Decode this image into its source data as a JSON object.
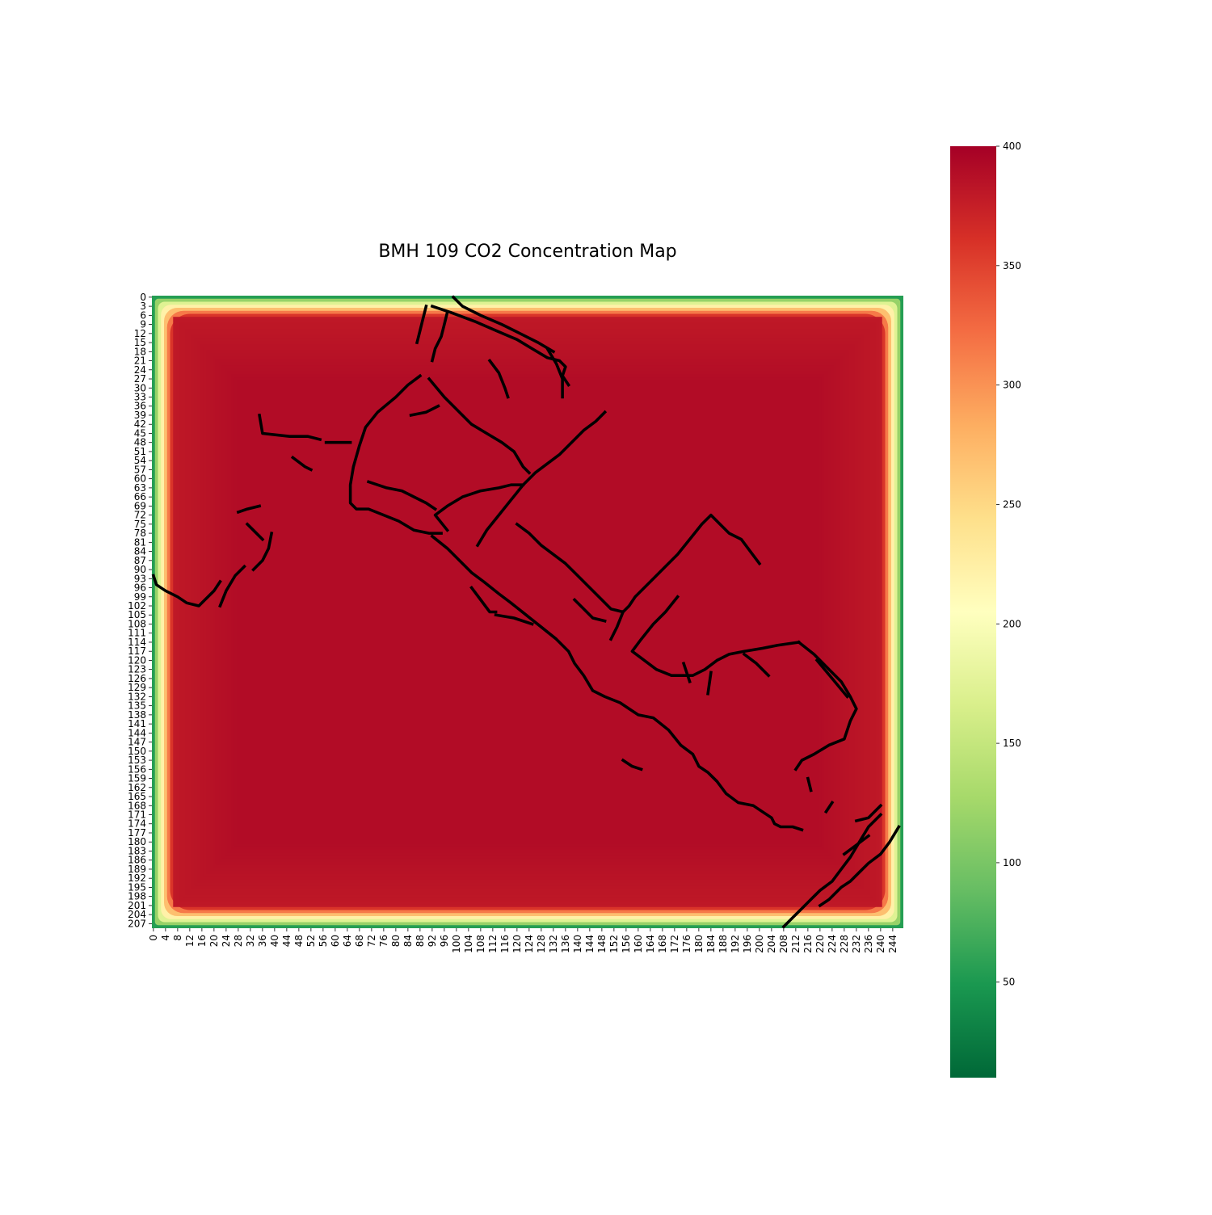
{
  "chart_data": {
    "type": "heatmap",
    "title": "BMH 109 CO2 Concentration Map",
    "xlabel": "",
    "ylabel": "",
    "grid_shape": {
      "rows": 209,
      "cols": 248
    },
    "x_tick_labels": [
      "0",
      "4",
      "8",
      "12",
      "16",
      "20",
      "24",
      "28",
      "32",
      "36",
      "40",
      "44",
      "48",
      "52",
      "56",
      "60",
      "64",
      "68",
      "72",
      "76",
      "80",
      "84",
      "88",
      "92",
      "96",
      "100",
      "104",
      "108",
      "112",
      "116",
      "120",
      "124",
      "128",
      "132",
      "136",
      "140",
      "144",
      "148",
      "152",
      "156",
      "160",
      "164",
      "168",
      "172",
      "176",
      "180",
      "184",
      "188",
      "192",
      "196",
      "200",
      "204",
      "208",
      "212",
      "216",
      "220",
      "224",
      "228",
      "232",
      "236",
      "240",
      "244"
    ],
    "y_tick_labels": [
      "0",
      "3",
      "6",
      "9",
      "12",
      "15",
      "18",
      "21",
      "24",
      "27",
      "30",
      "33",
      "36",
      "39",
      "42",
      "45",
      "48",
      "51",
      "54",
      "57",
      "60",
      "63",
      "66",
      "69",
      "72",
      "75",
      "78",
      "81",
      "84",
      "87",
      "90",
      "93",
      "96",
      "99",
      "102",
      "105",
      "108",
      "111",
      "114",
      "117",
      "120",
      "123",
      "126",
      "129",
      "132",
      "135",
      "138",
      "141",
      "144",
      "147",
      "150",
      "153",
      "156",
      "159",
      "162",
      "165",
      "168",
      "171",
      "174",
      "177",
      "180",
      "183",
      "186",
      "189",
      "192",
      "195",
      "198",
      "201",
      "204",
      "207"
    ],
    "value_model": {
      "interior_value": 390,
      "edge_value": 10,
      "edge_falloff_cells": 7,
      "outer_halo_value": 380,
      "outer_halo_cells": 28
    },
    "colorbar": {
      "colormap": "RdYlGn_r",
      "vmin": 10,
      "vmax": 400,
      "ticks": [
        50,
        100,
        150,
        200,
        250,
        300,
        350,
        400
      ],
      "tick_labels": [
        "50",
        "100",
        "150",
        "200",
        "250",
        "300",
        "350",
        "400"
      ]
    },
    "obstacle_color": "#000000",
    "obstacle_paths": [
      [
        [
          99,
          0
        ],
        [
          102,
          3
        ],
        [
          108,
          6
        ],
        [
          115,
          9
        ],
        [
          121,
          12
        ],
        [
          127,
          15
        ],
        [
          132,
          18
        ]
      ],
      [
        [
          92,
          3
        ],
        [
          98,
          5
        ],
        [
          106,
          8
        ],
        [
          113,
          11
        ],
        [
          120,
          14
        ],
        [
          125,
          17
        ],
        [
          130,
          20
        ],
        [
          134,
          21
        ],
        [
          136,
          23
        ],
        [
          135,
          26
        ],
        [
          137,
          29
        ]
      ],
      [
        [
          90,
          3
        ],
        [
          89,
          7
        ],
        [
          88,
          11
        ],
        [
          87,
          15
        ]
      ],
      [
        [
          97,
          5
        ],
        [
          96,
          9
        ],
        [
          95,
          13
        ],
        [
          93,
          17
        ],
        [
          92,
          21
        ]
      ],
      [
        [
          111,
          21
        ],
        [
          114,
          25
        ],
        [
          116,
          30
        ],
        [
          117,
          33
        ]
      ],
      [
        [
          130,
          17
        ],
        [
          133,
          22
        ],
        [
          135,
          27
        ],
        [
          135,
          33
        ]
      ],
      [
        [
          88,
          26
        ],
        [
          84,
          29
        ],
        [
          80,
          33
        ],
        [
          74,
          38
        ],
        [
          70,
          43
        ],
        [
          68,
          49
        ],
        [
          66,
          56
        ],
        [
          65,
          62
        ],
        [
          65,
          68
        ],
        [
          67,
          70
        ],
        [
          71,
          70
        ],
        [
          76,
          72
        ],
        [
          81,
          74
        ],
        [
          86,
          77
        ],
        [
          91,
          78
        ],
        [
          95,
          78
        ]
      ],
      [
        [
          91,
          27
        ],
        [
          96,
          33
        ],
        [
          101,
          38
        ],
        [
          105,
          42
        ],
        [
          110,
          45
        ],
        [
          115,
          48
        ],
        [
          119,
          51
        ],
        [
          122,
          56
        ],
        [
          124,
          58
        ]
      ],
      [
        [
          94,
          36
        ],
        [
          90,
          38
        ],
        [
          85,
          39
        ]
      ],
      [
        [
          71,
          61
        ],
        [
          77,
          63
        ],
        [
          82,
          64
        ],
        [
          86,
          66
        ],
        [
          90,
          68
        ],
        [
          93,
          70
        ]
      ],
      [
        [
          35,
          39
        ],
        [
          36,
          45
        ],
        [
          45,
          46
        ],
        [
          51,
          46
        ],
        [
          55,
          47
        ]
      ],
      [
        [
          57,
          48
        ],
        [
          65,
          48
        ]
      ],
      [
        [
          46,
          53
        ],
        [
          50,
          56
        ],
        [
          52,
          57
        ]
      ],
      [
        [
          92,
          79
        ],
        [
          97,
          83
        ],
        [
          101,
          87
        ],
        [
          105,
          91
        ],
        [
          109,
          94
        ],
        [
          114,
          98
        ],
        [
          118,
          101
        ],
        [
          123,
          105
        ],
        [
          128,
          109
        ],
        [
          133,
          113
        ],
        [
          137,
          117
        ],
        [
          139,
          121
        ],
        [
          142,
          125
        ],
        [
          145,
          130
        ],
        [
          149,
          132
        ],
        [
          154,
          134
        ],
        [
          157,
          136
        ],
        [
          160,
          138
        ],
        [
          165,
          139
        ],
        [
          170,
          143
        ],
        [
          174,
          148
        ],
        [
          178,
          151
        ],
        [
          180,
          155
        ],
        [
          183,
          157
        ],
        [
          186,
          160
        ],
        [
          189,
          164
        ],
        [
          193,
          167
        ],
        [
          198,
          168
        ],
        [
          201,
          170
        ],
        [
          204,
          172
        ],
        [
          205,
          174
        ],
        [
          207,
          175
        ],
        [
          211,
          175
        ],
        [
          214,
          176
        ]
      ],
      [
        [
          107,
          82
        ],
        [
          110,
          77
        ],
        [
          114,
          72
        ],
        [
          118,
          67
        ],
        [
          122,
          62
        ],
        [
          126,
          58
        ],
        [
          130,
          55
        ],
        [
          134,
          52
        ],
        [
          138,
          48
        ],
        [
          142,
          44
        ],
        [
          146,
          41
        ],
        [
          149,
          38
        ]
      ],
      [
        [
          97,
          77
        ],
        [
          93,
          72
        ],
        [
          97,
          69
        ],
        [
          102,
          66
        ],
        [
          108,
          64
        ],
        [
          114,
          63
        ],
        [
          118,
          62
        ],
        [
          122,
          62
        ]
      ],
      [
        [
          120,
          75
        ],
        [
          124,
          78
        ],
        [
          128,
          82
        ],
        [
          132,
          85
        ],
        [
          136,
          88
        ],
        [
          140,
          92
        ],
        [
          144,
          96
        ],
        [
          148,
          100
        ],
        [
          151,
          103
        ],
        [
          155,
          104
        ],
        [
          157,
          102
        ],
        [
          159,
          99
        ],
        [
          164,
          94
        ],
        [
          169,
          89
        ],
        [
          173,
          85
        ],
        [
          177,
          80
        ],
        [
          181,
          75
        ],
        [
          184,
          72
        ],
        [
          187,
          75
        ],
        [
          190,
          78
        ],
        [
          194,
          80
        ],
        [
          197,
          84
        ],
        [
          200,
          88
        ]
      ],
      [
        [
          105,
          96
        ],
        [
          108,
          100
        ],
        [
          111,
          104
        ],
        [
          113,
          104
        ]
      ],
      [
        [
          155,
          104
        ],
        [
          153,
          109
        ],
        [
          151,
          113
        ]
      ],
      [
        [
          113,
          105
        ],
        [
          119,
          106
        ],
        [
          125,
          108
        ]
      ],
      [
        [
          173,
          99
        ],
        [
          169,
          104
        ],
        [
          165,
          108
        ],
        [
          161,
          113
        ],
        [
          158,
          117
        ],
        [
          162,
          120
        ],
        [
          166,
          123
        ],
        [
          171,
          125
        ],
        [
          178,
          125
        ],
        [
          182,
          123
        ],
        [
          186,
          120
        ],
        [
          190,
          118
        ],
        [
          195,
          117
        ],
        [
          201,
          116
        ],
        [
          206,
          115
        ],
        [
          213,
          114
        ]
      ],
      [
        [
          195,
          118
        ],
        [
          199,
          121
        ],
        [
          203,
          125
        ]
      ],
      [
        [
          213,
          114
        ],
        [
          218,
          118
        ],
        [
          223,
          123
        ],
        [
          227,
          127
        ],
        [
          230,
          132
        ],
        [
          232,
          136
        ],
        [
          230,
          140
        ],
        [
          228,
          146
        ],
        [
          223,
          148
        ],
        [
          218,
          151
        ],
        [
          214,
          153
        ],
        [
          212,
          156
        ]
      ],
      [
        [
          219,
          120
        ],
        [
          224,
          126
        ],
        [
          229,
          132
        ]
      ],
      [
        [
          175,
          121
        ],
        [
          177,
          127
        ]
      ],
      [
        [
          184,
          124
        ],
        [
          183,
          131
        ]
      ],
      [
        [
          22,
          94
        ],
        [
          20,
          97
        ],
        [
          17,
          100
        ],
        [
          15,
          102
        ],
        [
          11,
          101
        ],
        [
          8,
          99
        ],
        [
          4,
          97
        ],
        [
          1,
          95
        ],
        [
          0,
          92
        ]
      ],
      [
        [
          22,
          102
        ],
        [
          24,
          97
        ],
        [
          27,
          92
        ],
        [
          30,
          89
        ]
      ],
      [
        [
          31,
          75
        ],
        [
          33,
          77
        ],
        [
          36,
          80
        ]
      ],
      [
        [
          39,
          78
        ],
        [
          38,
          83
        ],
        [
          36,
          87
        ],
        [
          33,
          90
        ]
      ],
      [
        [
          28,
          71
        ],
        [
          31,
          70
        ],
        [
          35,
          69
        ]
      ],
      [
        [
          155,
          153
        ],
        [
          158,
          155
        ],
        [
          161,
          156
        ]
      ],
      [
        [
          240,
          171
        ],
        [
          236,
          175
        ],
        [
          233,
          180
        ],
        [
          230,
          185
        ],
        [
          227,
          189
        ],
        [
          224,
          193
        ],
        [
          220,
          196
        ],
        [
          217,
          199
        ],
        [
          214,
          202
        ],
        [
          211,
          205
        ],
        [
          208,
          208
        ]
      ],
      [
        [
          246,
          175
        ],
        [
          243,
          180
        ],
        [
          240,
          184
        ],
        [
          236,
          187
        ],
        [
          233,
          190
        ],
        [
          230,
          193
        ],
        [
          227,
          195
        ],
        [
          223,
          199
        ],
        [
          220,
          201
        ]
      ],
      [
        [
          240,
          168
        ],
        [
          236,
          172
        ],
        [
          232,
          173
        ]
      ],
      [
        [
          228,
          184
        ],
        [
          232,
          181
        ],
        [
          236,
          178
        ]
      ],
      [
        [
          224,
          167
        ],
        [
          222,
          170
        ]
      ],
      [
        [
          216,
          159
        ],
        [
          217,
          163
        ]
      ],
      [
        [
          139,
          100
        ],
        [
          142,
          103
        ],
        [
          145,
          106
        ],
        [
          149,
          107
        ]
      ]
    ]
  }
}
